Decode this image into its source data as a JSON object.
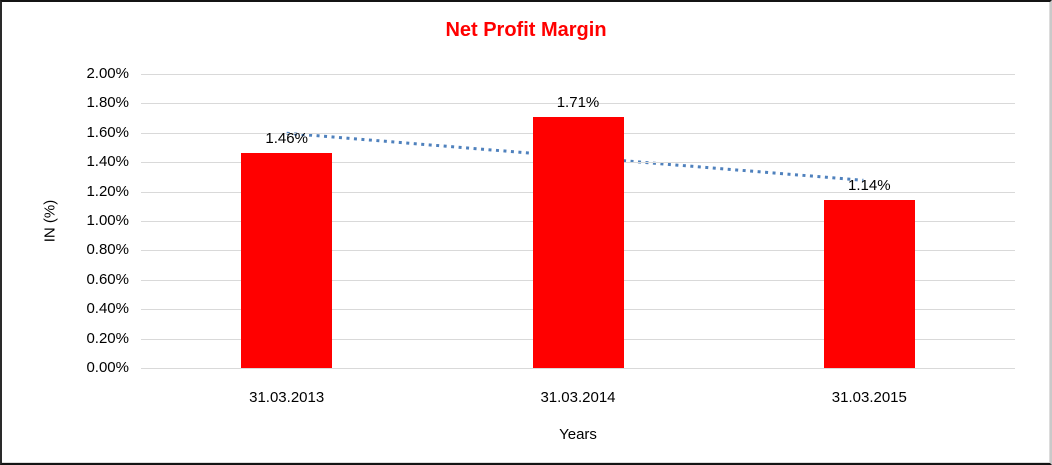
{
  "chart_data": {
    "type": "bar",
    "title": "Net Profit Margin",
    "title_color": "#FF0000",
    "categories": [
      "31.03.2013",
      "31.03.2014",
      "31.03.2015"
    ],
    "values": [
      1.46,
      1.71,
      1.14
    ],
    "data_labels": [
      "1.46%",
      "1.71%",
      "1.14%"
    ],
    "xlabel": "Years",
    "ylabel": "IN (%)",
    "ylim": [
      0,
      2.0
    ],
    "ytick_step": 0.2,
    "ytick_labels": [
      "2.00%",
      "1.80%",
      "1.60%",
      "1.40%",
      "1.20%",
      "1.00%",
      "0.80%",
      "0.60%",
      "0.40%",
      "0.20%",
      "0.00%"
    ],
    "bar_color": "#FF0000",
    "grid": true,
    "gridline_color": "#d9d9d9",
    "legend": false,
    "trendline": {
      "type": "linear",
      "style": "dotted",
      "color": "#4f81bd",
      "start_value": 1.597,
      "end_value": 1.277
    }
  }
}
